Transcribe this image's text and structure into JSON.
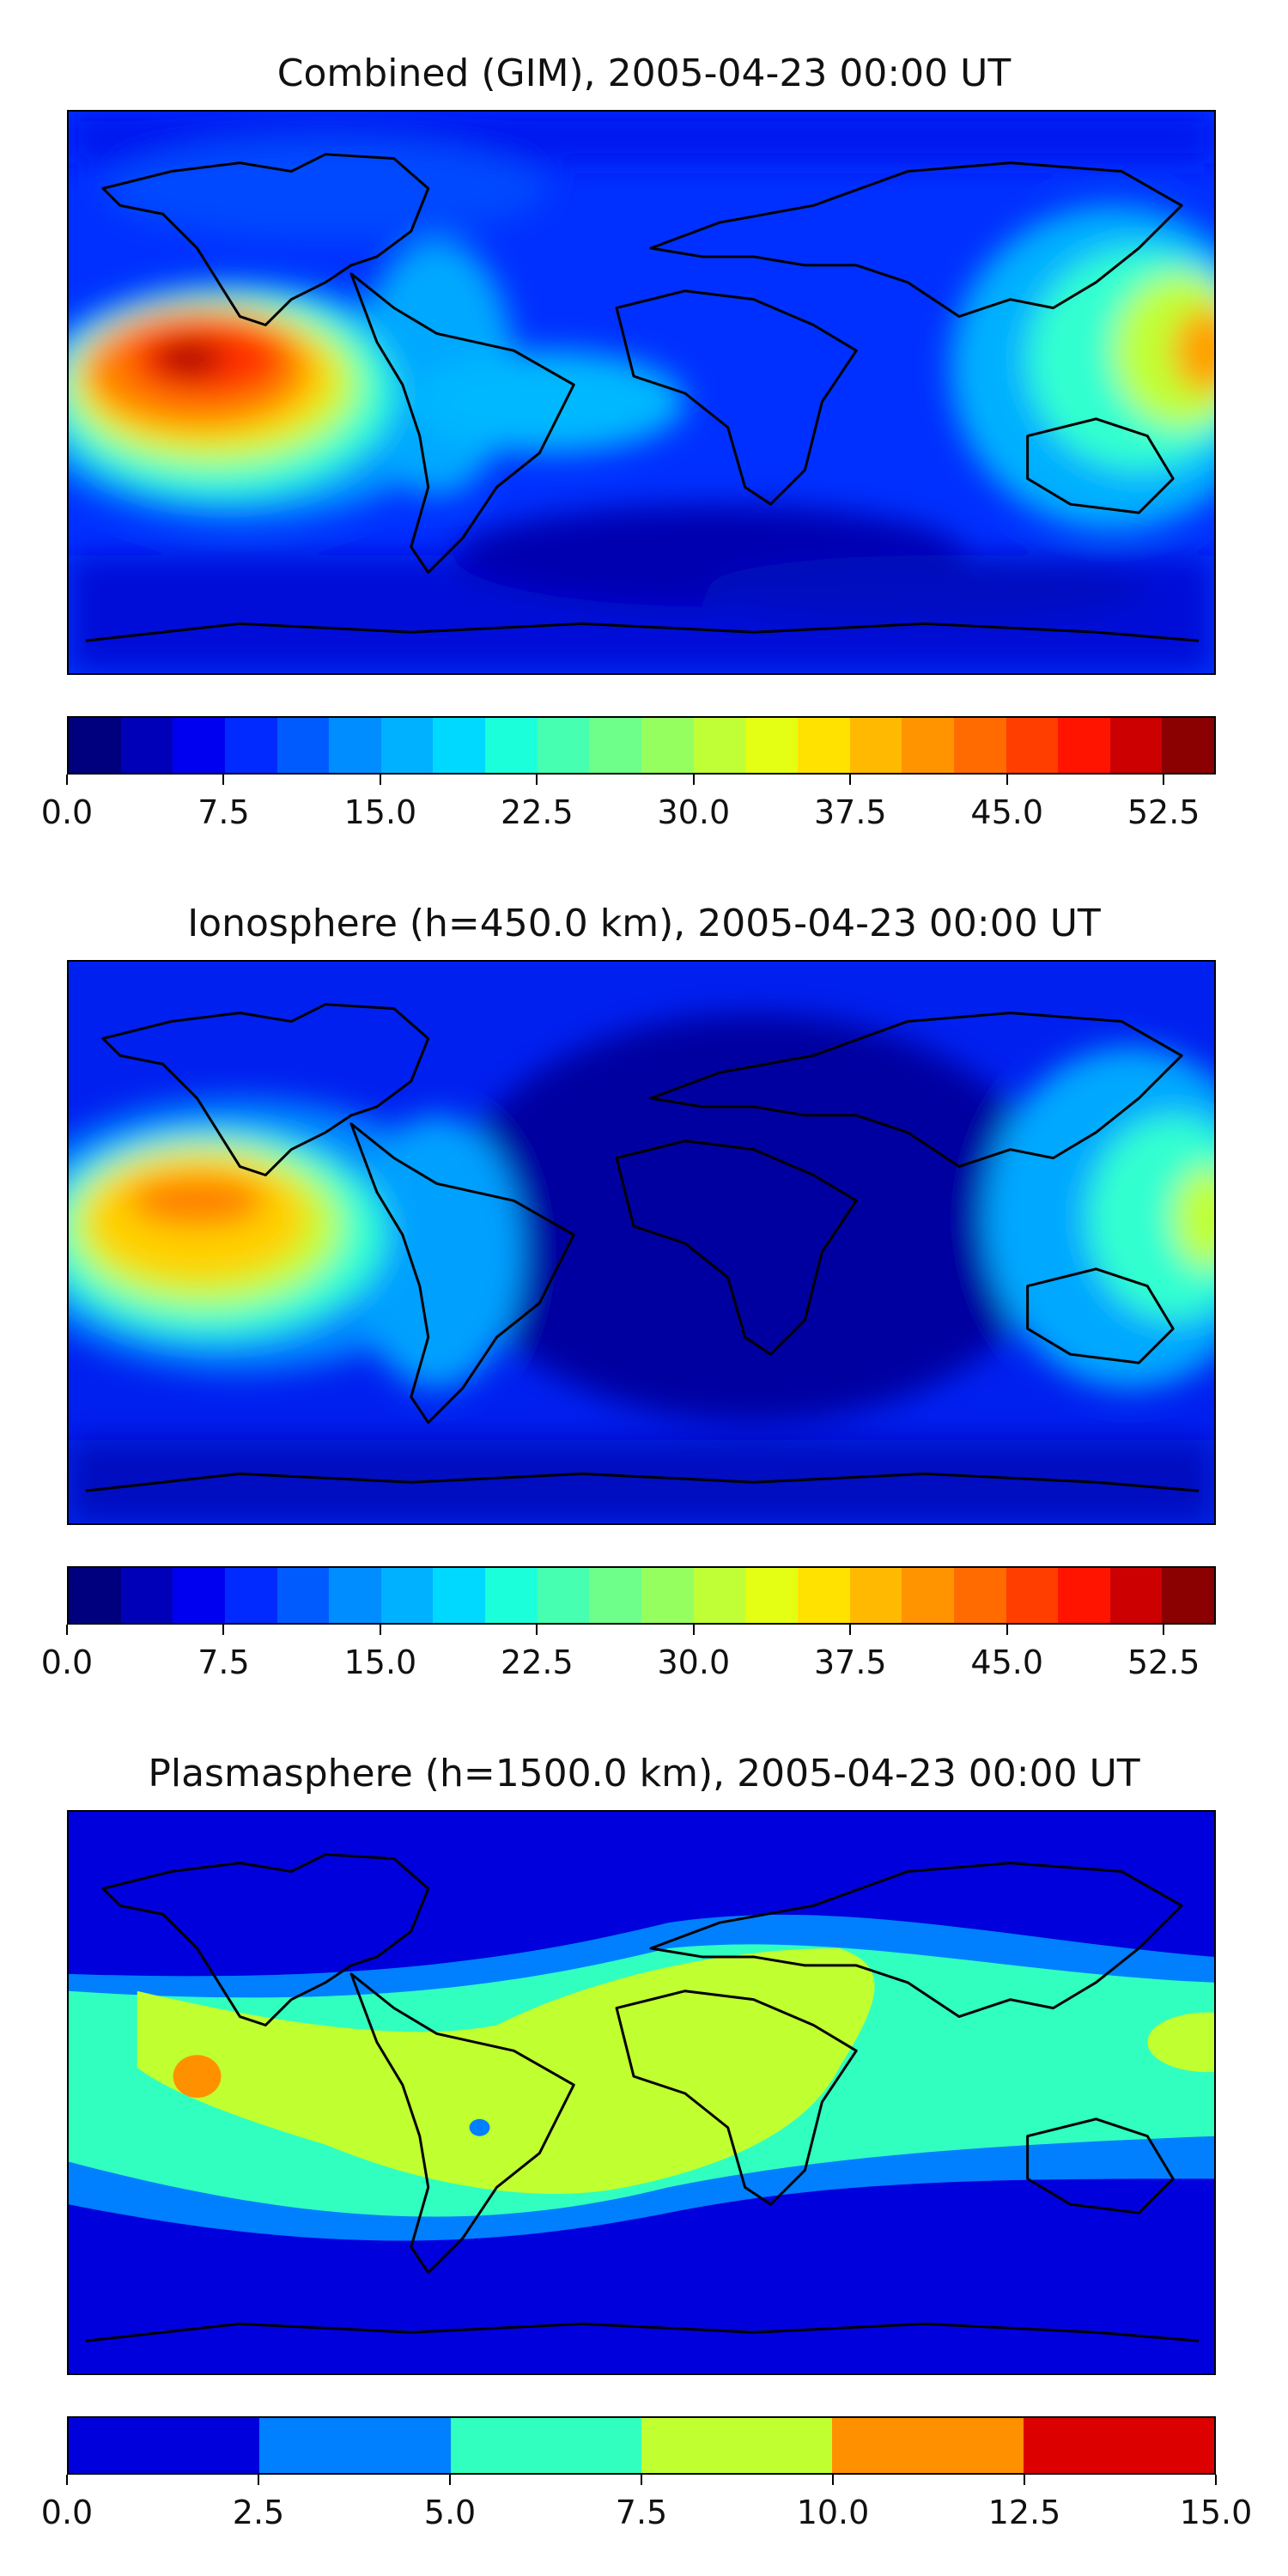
{
  "panels": [
    {
      "title": "Combined (GIM), 2005-04-23 00:00 UT",
      "colorbar": {
        "range": [
          0,
          55
        ],
        "colors": [
          "#00007f",
          "#0000b8",
          "#0000f0",
          "#002aff",
          "#005bff",
          "#008dff",
          "#00b1ff",
          "#00d9ff",
          "#1cffdb",
          "#46ffb0",
          "#6dff8a",
          "#96ff60",
          "#c0ff36",
          "#e4ff13",
          "#ffe200",
          "#ffb900",
          "#ff9400",
          "#ff6b00",
          "#ff3e00",
          "#ff1400",
          "#cc0000",
          "#8b0000"
        ],
        "tick_labels": [
          "0.0",
          "7.5",
          "15.0",
          "22.5",
          "30.0",
          "37.5",
          "45.0",
          "52.5"
        ],
        "tick_values": [
          0,
          7.5,
          15,
          22.5,
          30,
          37.5,
          45,
          52.5
        ]
      }
    },
    {
      "title": "Ionosphere  (h=450.0 km), 2005-04-23 00:00 UT",
      "colorbar": {
        "range": [
          0,
          55
        ],
        "colors": [
          "#00007f",
          "#0000b8",
          "#0000f0",
          "#002aff",
          "#005bff",
          "#008dff",
          "#00b1ff",
          "#00d9ff",
          "#1cffdb",
          "#46ffb0",
          "#6dff8a",
          "#96ff60",
          "#c0ff36",
          "#e4ff13",
          "#ffe200",
          "#ffb900",
          "#ff9400",
          "#ff6b00",
          "#ff3e00",
          "#ff1400",
          "#cc0000",
          "#8b0000"
        ],
        "tick_labels": [
          "0.0",
          "7.5",
          "15.0",
          "22.5",
          "30.0",
          "37.5",
          "45.0",
          "52.5"
        ],
        "tick_values": [
          0,
          7.5,
          15,
          22.5,
          30,
          37.5,
          45,
          52.5
        ]
      }
    },
    {
      "title": "Plasmasphere (h=1500.0 km), 2005-04-23 00:00 UT",
      "colorbar": {
        "range": [
          0,
          15
        ],
        "colors": [
          "#0000dd",
          "#0080ff",
          "#30ffc0",
          "#c0ff30",
          "#ff9000",
          "#dd0000"
        ],
        "tick_labels": [
          "0.0",
          "2.5",
          "5.0",
          "7.5",
          "10.0",
          "12.5",
          "15.0"
        ],
        "tick_values": [
          0,
          2.5,
          5,
          7.5,
          10,
          12.5,
          15
        ]
      }
    }
  ]
}
